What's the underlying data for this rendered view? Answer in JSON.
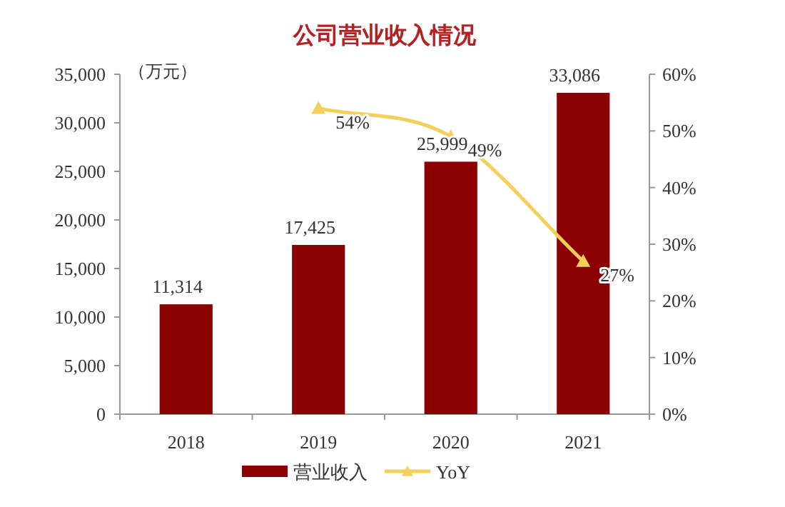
{
  "chart_data": {
    "type": "bar",
    "title": "公司营业收入情况",
    "annotations": [
      "（万元）"
    ],
    "categories": [
      "2018",
      "2019",
      "2020",
      "2021"
    ],
    "series": [
      {
        "name": "营业收入",
        "color": "#8b0000",
        "values": [
          11314,
          17425,
          25999,
          33086
        ],
        "value_labels": [
          "11,314",
          "17,425",
          "25,999",
          "33,086"
        ]
      },
      {
        "name": "YoY",
        "type": "line",
        "axis": "y2",
        "color": "#f2d05a",
        "marker": "triangle",
        "values": [
          null,
          54,
          49,
          27
        ],
        "value_labels": [
          null,
          "54%",
          "49%",
          "27%"
        ]
      }
    ],
    "ylim": [
      0,
      35000
    ],
    "yticks": [
      0,
      {
        "value": 5000,
        "label": "5,000"
      },
      {
        "value": 10000,
        "label": "10,000"
      },
      {
        "value": 15000,
        "label": "15,000"
      },
      {
        "value": 20000,
        "label": "20,000"
      },
      {
        "value": 25000,
        "label": "25,000"
      },
      {
        "value": 30000,
        "label": "30,000"
      },
      {
        "value": 35000,
        "label": "35,000"
      }
    ],
    "y2lim": [
      0,
      60
    ],
    "y2ticks": [
      {
        "value": 0,
        "label": "0%"
      },
      {
        "value": 10,
        "label": "10%"
      },
      {
        "value": 20,
        "label": "20%"
      },
      {
        "value": 30,
        "label": "30%"
      },
      {
        "value": 40,
        "label": "40%"
      },
      {
        "value": 50,
        "label": "50%"
      },
      {
        "value": 60,
        "label": "60%"
      }
    ],
    "legend": "bottom"
  }
}
